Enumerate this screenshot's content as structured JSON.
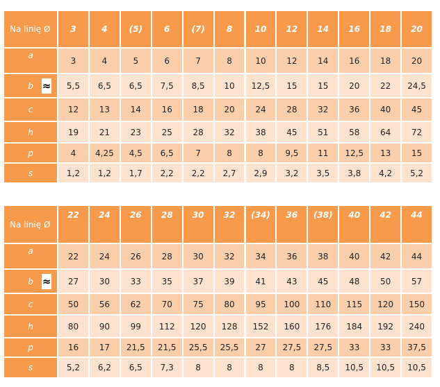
{
  "tables": [
    {
      "header": {
        "label": "Na linię Ø",
        "columns": [
          "3",
          "4",
          "(5)",
          "6",
          "(7)",
          "8",
          "10",
          "12",
          "14",
          "16",
          "18",
          "20"
        ]
      },
      "rows": [
        {
          "label": "a",
          "cells": [
            "3",
            "4",
            "5",
            "6",
            "7",
            "8",
            "10",
            "12",
            "14",
            "16",
            "18",
            "20"
          ]
        },
        {
          "label": "b",
          "note": "≈",
          "cells": [
            "5,5",
            "6,5",
            "6,5",
            "7,5",
            "8,5",
            "10",
            "12,5",
            "15",
            "15",
            "20",
            "22",
            "24,5"
          ]
        },
        {
          "label": "c",
          "cells": [
            "12",
            "13",
            "14",
            "16",
            "18",
            "20",
            "24",
            "28",
            "32",
            "36",
            "40",
            "45"
          ]
        },
        {
          "label": "h",
          "cells": [
            "19",
            "21",
            "23",
            "25",
            "28",
            "32",
            "38",
            "45",
            "51",
            "58",
            "64",
            "72"
          ]
        },
        {
          "label": "p",
          "cells": [
            "4",
            "4,25",
            "4,5",
            "6,5",
            "7",
            "8",
            "8",
            "9,5",
            "11",
            "12,5",
            "13",
            "15"
          ]
        },
        {
          "label": "s",
          "cells": [
            "1,2",
            "1,2",
            "1,7",
            "2,2",
            "2,2",
            "2,7",
            "2,9",
            "3,2",
            "3,5",
            "3,8",
            "4,2",
            "5,2"
          ]
        }
      ]
    },
    {
      "header": {
        "label": "Na linię Ø",
        "columns": [
          "22",
          "24",
          "26",
          "28",
          "30",
          "32",
          "(34)",
          "36",
          "(38)",
          "40",
          "42",
          "44"
        ]
      },
      "rows": [
        {
          "label": "a",
          "cells": [
            "22",
            "24",
            "26",
            "28",
            "30",
            "32",
            "34",
            "36",
            "38",
            "40",
            "42",
            "44"
          ]
        },
        {
          "label": "b",
          "note": "≈",
          "cells": [
            "27",
            "30",
            "33",
            "35",
            "37",
            "39",
            "41",
            "43",
            "45",
            "48",
            "50",
            "57"
          ]
        },
        {
          "label": "c",
          "cells": [
            "50",
            "56",
            "62",
            "70",
            "75",
            "80",
            "95",
            "100",
            "110",
            "115",
            "120",
            "150"
          ]
        },
        {
          "label": "h",
          "cells": [
            "80",
            "90",
            "99",
            "112",
            "120",
            "128",
            "152",
            "160",
            "176",
            "184",
            "192",
            "240"
          ]
        },
        {
          "label": "p",
          "cells": [
            "16",
            "17",
            "21,5",
            "21,5",
            "25,5",
            "25,5",
            "27",
            "27,5",
            "27,5",
            "33",
            "33",
            "37,5"
          ]
        },
        {
          "label": "s",
          "cells": [
            "5,2",
            "6,2",
            "6,5",
            "7,3",
            "8",
            "8",
            "8",
            "8",
            "8,5",
            "10,5",
            "10,5",
            "10,5"
          ]
        }
      ]
    }
  ]
}
